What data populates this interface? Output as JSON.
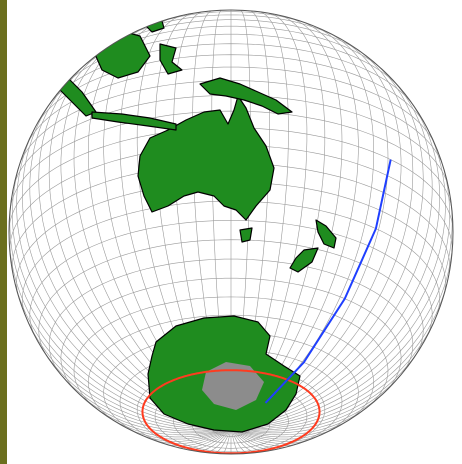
{
  "map": {
    "projection": "orthographic",
    "center_lon": 140,
    "center_lat": -28,
    "graticule_step_deg": 5,
    "colors": {
      "land": "#1f8c1f",
      "coast": "#000000",
      "ocean": "#ffffff",
      "graticule": "#9a9a9a",
      "antarctic_circle": "#ff3b1f",
      "track": "#1f3fff",
      "ice": "#8c8c8c",
      "side_strip": "#6b6f1e"
    },
    "lines": [
      {
        "name": "antarctic-circle",
        "lat": -66.5
      },
      {
        "name": "track-line",
        "points": [
          [
            186,
            0
          ],
          [
            184,
            -20
          ],
          [
            182,
            -40
          ],
          [
            181,
            -60
          ],
          [
            180,
            -76
          ]
        ]
      }
    ]
  }
}
